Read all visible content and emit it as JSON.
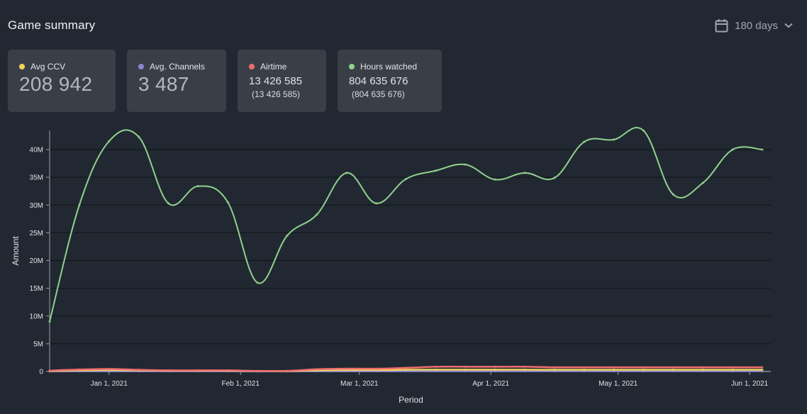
{
  "header": {
    "title": "Game summary",
    "period_label": "180 days"
  },
  "cards": [
    {
      "label": "Avg CCV",
      "value": "208 942",
      "color": "#f2d45c"
    },
    {
      "label": "Avg. Channels",
      "value": "3 487",
      "color": "#8c86d0"
    },
    {
      "label": "Airtime",
      "value": "13 426 585",
      "sub": "(13 426 585)",
      "color": "#ee6e6e"
    },
    {
      "label": "Hours watched",
      "value": "804 635 676",
      "sub": "(804 635 676)",
      "color": "#8fd18f"
    }
  ],
  "chart_data": {
    "type": "line",
    "xlabel": "Period",
    "ylabel": "Amount",
    "ylim": [
      0,
      40000000
    ],
    "yticks": [
      0,
      5000000,
      10000000,
      15000000,
      20000000,
      25000000,
      30000000,
      35000000,
      40000000
    ],
    "ytick_labels": [
      "0",
      "5M",
      "10M",
      "15M",
      "20M",
      "25M",
      "30M",
      "35M",
      "40M"
    ],
    "xlim": [
      "2020-12-18",
      "2021-06-06"
    ],
    "xticks": [
      "2021-01-01",
      "2021-02-01",
      "2021-03-01",
      "2021-04-01",
      "2021-05-01",
      "2021-06-01"
    ],
    "xtick_labels": [
      "Jan 1, 2021",
      "Feb 1, 2021",
      "Mar 1, 2021",
      "Apr 1, 2021",
      "May 1, 2021",
      "Jun 1, 2021"
    ],
    "grid": true,
    "legend": "none",
    "x": [
      "2020-12-18",
      "2020-12-25",
      "2021-01-01",
      "2021-01-08",
      "2021-01-15",
      "2021-01-22",
      "2021-01-29",
      "2021-02-05",
      "2021-02-12",
      "2021-02-19",
      "2021-02-26",
      "2021-03-05",
      "2021-03-12",
      "2021-03-19",
      "2021-03-26",
      "2021-04-02",
      "2021-04-09",
      "2021-04-16",
      "2021-04-23",
      "2021-04-30",
      "2021-05-07",
      "2021-05-14",
      "2021-05-21",
      "2021-05-28",
      "2021-06-04"
    ],
    "series": [
      {
        "color": "#8fd18f",
        "values": [
          9000000,
          30000000,
          41500000,
          42300000,
          30300000,
          33400000,
          30500000,
          16000000,
          24500000,
          28300000,
          35800000,
          30300000,
          34700000,
          36200000,
          37300000,
          34600000,
          35800000,
          34900000,
          41400000,
          41800000,
          43400000,
          31900000,
          34000000,
          40000000,
          40000000
        ]
      },
      {
        "color": "#ee6e6e",
        "values": [
          150000,
          350000,
          450000,
          300000,
          200000,
          200000,
          200000,
          100000,
          100000,
          400000,
          500000,
          500000,
          650000,
          850000,
          850000,
          850000,
          850000,
          750000,
          750000,
          750000,
          750000,
          750000,
          750000,
          750000,
          750000
        ]
      },
      {
        "color": "#f2d45c",
        "values": [
          100000,
          200000,
          250000,
          200000,
          150000,
          150000,
          150000,
          80000,
          80000,
          200000,
          250000,
          250000,
          300000,
          320000,
          320000,
          320000,
          320000,
          300000,
          300000,
          300000,
          300000,
          300000,
          300000,
          300000,
          300000
        ]
      },
      {
        "color": "#8c86d0",
        "values": [
          20000,
          30000,
          30000,
          30000,
          25000,
          25000,
          25000,
          20000,
          20000,
          30000,
          35000,
          35000,
          40000,
          40000,
          40000,
          40000,
          40000,
          40000,
          40000,
          40000,
          40000,
          40000,
          40000,
          40000,
          40000
        ]
      }
    ]
  }
}
